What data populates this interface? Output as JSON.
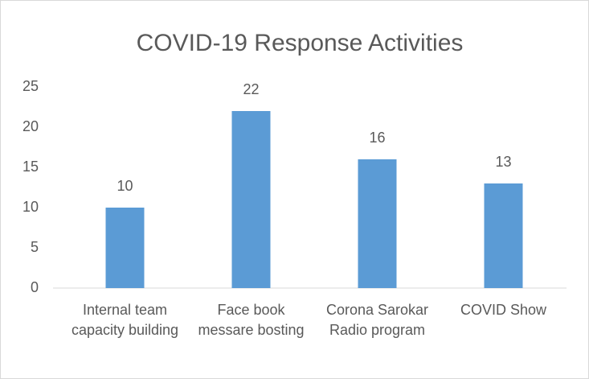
{
  "chart_data": {
    "type": "bar",
    "title": "COVID-19 Response Activities",
    "categories": [
      "Internal team capacity building",
      "Face book messare bosting",
      "Corona Sarokar Radio program",
      "COVID Show"
    ],
    "values": [
      10,
      22,
      16,
      13
    ],
    "color": "#5b9bd5",
    "ylim": [
      0,
      25
    ],
    "yticks": [
      0,
      5,
      10,
      15,
      20,
      25
    ],
    "grid": false
  }
}
